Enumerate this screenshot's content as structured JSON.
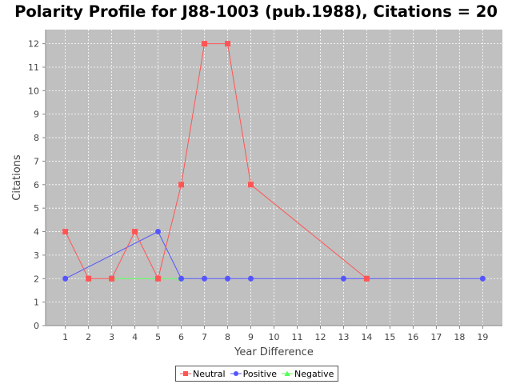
{
  "chart_data": {
    "type": "line",
    "title": "Polarity Profile for J88-1003 (pub.1988), Citations = 20",
    "xlabel": "Year Difference",
    "ylabel": "Citations",
    "x_ticks": [
      1,
      2,
      3,
      4,
      5,
      6,
      7,
      8,
      9,
      10,
      11,
      12,
      13,
      14,
      15,
      16,
      17,
      18,
      19
    ],
    "y_ticks": [
      0,
      1,
      2,
      3,
      4,
      5,
      6,
      7,
      8,
      9,
      10,
      11,
      12
    ],
    "xlim": [
      0.15,
      19.85
    ],
    "ylim": [
      0,
      12.6
    ],
    "grid": true,
    "background": "#c0c0c0",
    "legend_position": "bottom",
    "series": [
      {
        "name": "Neutral",
        "color": "#ff5555",
        "marker": "square",
        "points": [
          [
            1,
            4
          ],
          [
            2,
            2
          ],
          [
            3,
            2
          ],
          [
            4,
            4
          ],
          [
            5,
            2
          ],
          [
            6,
            6
          ],
          [
            7,
            12
          ],
          [
            8,
            12
          ],
          [
            9,
            6
          ],
          [
            14,
            2
          ]
        ]
      },
      {
        "name": "Positive",
        "color": "#5555ff",
        "marker": "circle",
        "points": [
          [
            1,
            2
          ],
          [
            5,
            4
          ],
          [
            6,
            2
          ],
          [
            7,
            2
          ],
          [
            8,
            2
          ],
          [
            9,
            2
          ],
          [
            13,
            2
          ],
          [
            19,
            2
          ]
        ]
      },
      {
        "name": "Negative",
        "color": "#55ff55",
        "marker": "triangle",
        "points": [
          [
            3,
            2
          ],
          [
            6,
            2
          ]
        ]
      }
    ]
  }
}
